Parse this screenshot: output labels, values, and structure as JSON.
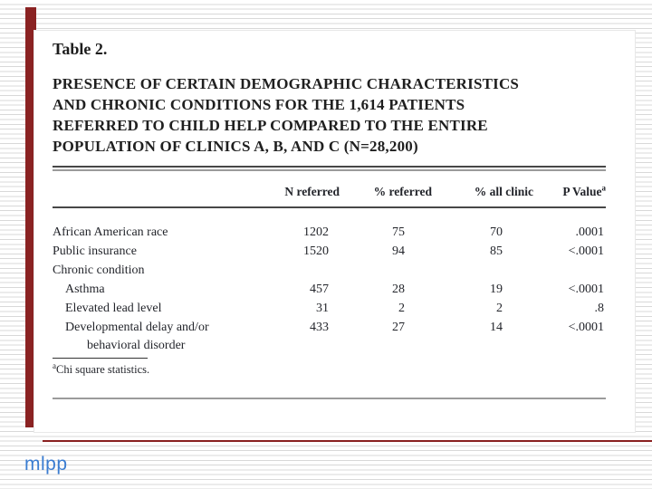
{
  "slide": {
    "table_label": "Table 2.",
    "title_lines": [
      "PRESENCE OF CERTAIN DEMOGRAPHIC CHARACTERISTICS",
      "AND CHRONIC CONDITIONS FOR THE 1,614 PATIENTS",
      "REFERRED TO CHILD HELP COMPARED TO THE ENTIRE",
      "POPULATION OF CLINICS A, B, AND C (N=28,200)"
    ],
    "footer_logo": "mlpp"
  },
  "table": {
    "columns": [
      {
        "label": "N referred"
      },
      {
        "label": "% referred"
      },
      {
        "label": "% all clinic"
      },
      {
        "label": "P Value",
        "sup": "a"
      }
    ],
    "rows": [
      {
        "label": "African American race",
        "n": "1202",
        "pct_referred": "75",
        "pct_all_clinic": "70",
        "p_value": ".0001"
      },
      {
        "label": "Public insurance",
        "n": "1520",
        "pct_referred": "94",
        "pct_all_clinic": "85",
        "p_value": "<.0001"
      },
      {
        "label": "Chronic condition",
        "n": "",
        "pct_referred": "",
        "pct_all_clinic": "",
        "p_value": ""
      },
      {
        "label": "Asthma",
        "n": "457",
        "pct_referred": "28",
        "pct_all_clinic": "19",
        "p_value": "<.0001"
      },
      {
        "label": "Elevated lead level",
        "n": "31",
        "pct_referred": "2",
        "pct_all_clinic": "2",
        "p_value": ".8"
      },
      {
        "label": "Developmental delay and/or",
        "label_line2": "behavioral disorder",
        "n": "433",
        "pct_referred": "27",
        "pct_all_clinic": "14",
        "p_value": "<.0001"
      }
    ],
    "footnote": {
      "sup": "a",
      "text": "Chi square statistics."
    }
  },
  "colors": {
    "accent_red": "#8a2222",
    "footer_blue": "#3b7dd1",
    "stripe_gray": "#d8d8d8"
  }
}
